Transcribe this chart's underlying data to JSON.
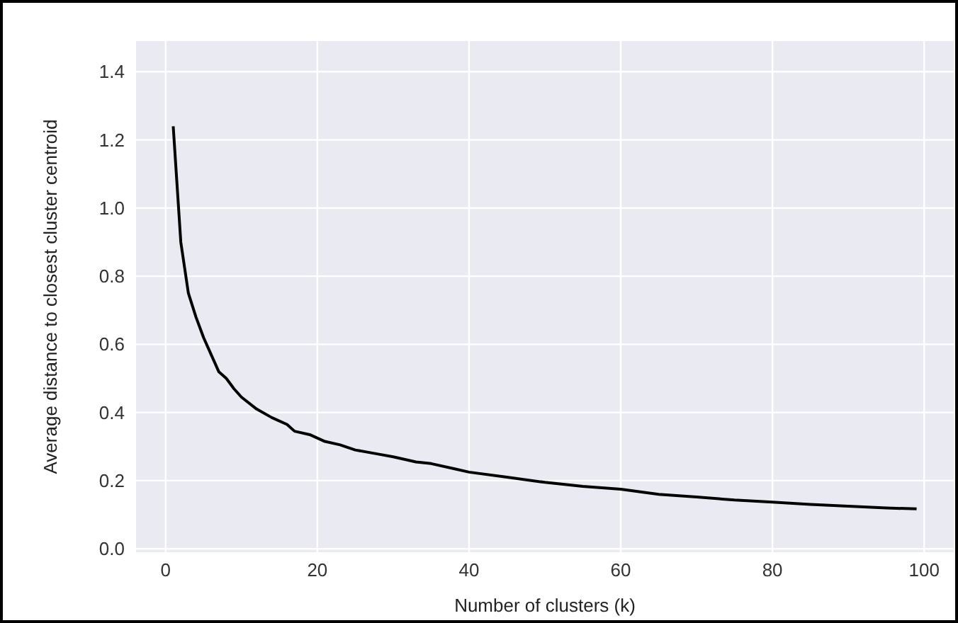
{
  "chart_data": {
    "type": "line",
    "xlabel": "Number of clusters (k)",
    "ylabel": "Average distance to closest cluster centroid",
    "x": [
      1,
      2,
      3,
      4,
      5,
      6,
      7,
      8,
      9,
      10,
      12,
      14,
      16,
      17,
      19,
      21,
      23,
      25,
      28,
      30,
      33,
      35,
      38,
      40,
      45,
      50,
      55,
      60,
      65,
      70,
      75,
      80,
      85,
      90,
      95,
      99
    ],
    "series": [
      {
        "color": "#000000",
        "values": [
          1.24,
          0.9,
          0.75,
          0.68,
          0.62,
          0.57,
          0.52,
          0.5,
          0.47,
          0.445,
          0.41,
          0.385,
          0.365,
          0.345,
          0.335,
          0.315,
          0.305,
          0.29,
          0.278,
          0.27,
          0.255,
          0.25,
          0.235,
          0.225,
          0.21,
          0.195,
          0.183,
          0.175,
          0.16,
          0.152,
          0.143,
          0.137,
          0.13,
          0.125,
          0.12,
          0.117
        ]
      }
    ],
    "xlim": [
      -3.9,
      103.9
    ],
    "ylim": [
      -0.01,
      1.49
    ],
    "xticks": [
      0,
      20,
      40,
      60,
      80,
      100
    ],
    "yticks": [
      {
        "value": 0,
        "label": "0.0"
      },
      {
        "value": 0.2,
        "label": "0.2"
      },
      {
        "value": 0.4,
        "label": "0.4"
      },
      {
        "value": 0.6,
        "label": "0.6"
      },
      {
        "value": 0.8,
        "label": "0.8"
      },
      {
        "value": 1,
        "label": "1.0"
      },
      {
        "value": 1.2,
        "label": "1.2"
      },
      {
        "value": 1.4,
        "label": "1.4"
      }
    ],
    "grid": true,
    "marker": "none",
    "line_style": "solid"
  }
}
